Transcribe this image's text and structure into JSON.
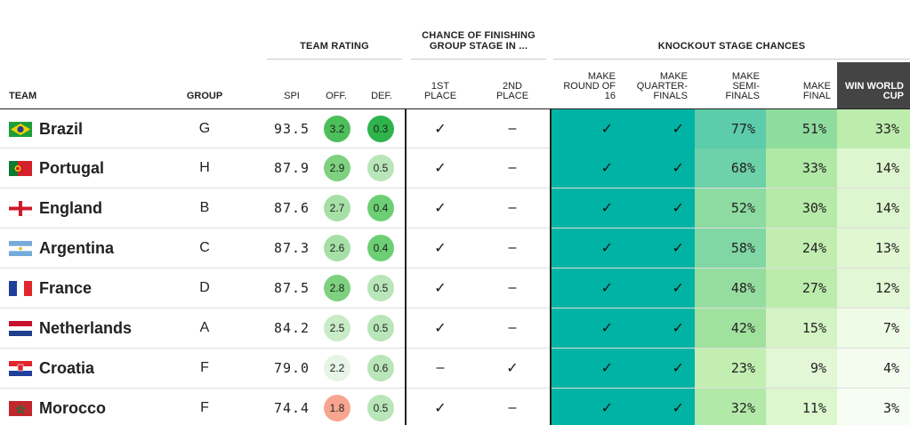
{
  "group_headers": {
    "team_rating": "TEAM RATING",
    "group_stage": "CHANCE OF FINISHING GROUP STAGE IN ...",
    "knockout": "KNOCKOUT STAGE CHANCES"
  },
  "columns": {
    "team": "TEAM",
    "group": "GROUP",
    "spi": "SPI",
    "off": "OFF.",
    "def": "DEF.",
    "first": "1ST PLACE",
    "second": "2ND PLACE",
    "r16": "MAKE ROUND OF 16",
    "qf": "MAKE QUARTER-FINALS",
    "sf": "MAKE SEMI-FINALS",
    "final": "MAKE FINAL",
    "win": "WIN WORLD CUP"
  },
  "symbols": {
    "check": "✓",
    "dash": "–"
  },
  "colors": {
    "knockout_certain": "#00b3a4",
    "off_scale": [
      "#f7a58f",
      "#e6f5e6",
      "#c8ecc8",
      "#a6e0a6",
      "#7ed17e",
      "#4cbf5a"
    ],
    "def_scale": [
      "#2fb44b",
      "#6dcf73",
      "#b8e6b8"
    ]
  },
  "teams": [
    {
      "name": "Brazil",
      "flag": "brazil-flag",
      "group": "G",
      "spi": "93.5",
      "off": "3.2",
      "def": "0.3",
      "first": "check",
      "second": "dash",
      "r16": "check",
      "qf": "check",
      "sf": "77%",
      "final": "51%",
      "win": "33%",
      "sf_color": "#5cccab",
      "final_color": "#8fdc9f",
      "win_color": "#bdecad"
    },
    {
      "name": "Portugal",
      "flag": "portugal-flag",
      "group": "H",
      "spi": "87.9",
      "off": "2.9",
      "def": "0.5",
      "first": "check",
      "second": "dash",
      "r16": "check",
      "qf": "check",
      "sf": "68%",
      "final": "33%",
      "win": "14%",
      "sf_color": "#6dd1a9",
      "final_color": "#b0e8a6",
      "win_color": "#def6cf"
    },
    {
      "name": "England",
      "flag": "england-flag",
      "group": "B",
      "spi": "87.6",
      "off": "2.7",
      "def": "0.4",
      "first": "check",
      "second": "dash",
      "r16": "check",
      "qf": "check",
      "sf": "52%",
      "final": "30%",
      "win": "14%",
      "sf_color": "#8ddba1",
      "final_color": "#b5eaa8",
      "win_color": "#def6cf"
    },
    {
      "name": "Argentina",
      "flag": "argentina-flag",
      "group": "C",
      "spi": "87.3",
      "off": "2.6",
      "def": "0.4",
      "first": "check",
      "second": "dash",
      "r16": "check",
      "qf": "check",
      "sf": "58%",
      "final": "24%",
      "win": "13%",
      "sf_color": "#80d7a4",
      "final_color": "#c1eeb0",
      "win_color": "#e0f7d2"
    },
    {
      "name": "France",
      "flag": "france-flag",
      "group": "D",
      "spi": "87.5",
      "off": "2.8",
      "def": "0.5",
      "first": "check",
      "second": "dash",
      "r16": "check",
      "qf": "check",
      "sf": "48%",
      "final": "27%",
      "win": "12%",
      "sf_color": "#95dd9f",
      "final_color": "#bbecac",
      "win_color": "#e2f7d5"
    },
    {
      "name": "Netherlands",
      "flag": "netherlands-flag",
      "group": "A",
      "spi": "84.2",
      "off": "2.5",
      "def": "0.5",
      "first": "check",
      "second": "dash",
      "r16": "check",
      "qf": "check",
      "sf": "42%",
      "final": "15%",
      "win": "7%",
      "sf_color": "#a1e19e",
      "final_color": "#d5f4c5",
      "win_color": "#eefbe6"
    },
    {
      "name": "Croatia",
      "flag": "croatia-flag",
      "group": "F",
      "spi": "79.0",
      "off": "2.2",
      "def": "0.6",
      "first": "dash",
      "second": "check",
      "r16": "check",
      "qf": "check",
      "sf": "23%",
      "final": "9%",
      "win": "4%",
      "sf_color": "#c2eeb1",
      "final_color": "#e2f7d5",
      "win_color": "#f4fcef"
    },
    {
      "name": "Morocco",
      "flag": "morocco-flag",
      "group": "F",
      "spi": "74.4",
      "off": "1.8",
      "def": "0.5",
      "first": "check",
      "second": "dash",
      "r16": "check",
      "qf": "check",
      "sf": "32%",
      "final": "11%",
      "win": "3%",
      "sf_color": "#b2e9a8",
      "final_color": "#dcf6cd",
      "win_color": "#f6fdf2"
    }
  ]
}
